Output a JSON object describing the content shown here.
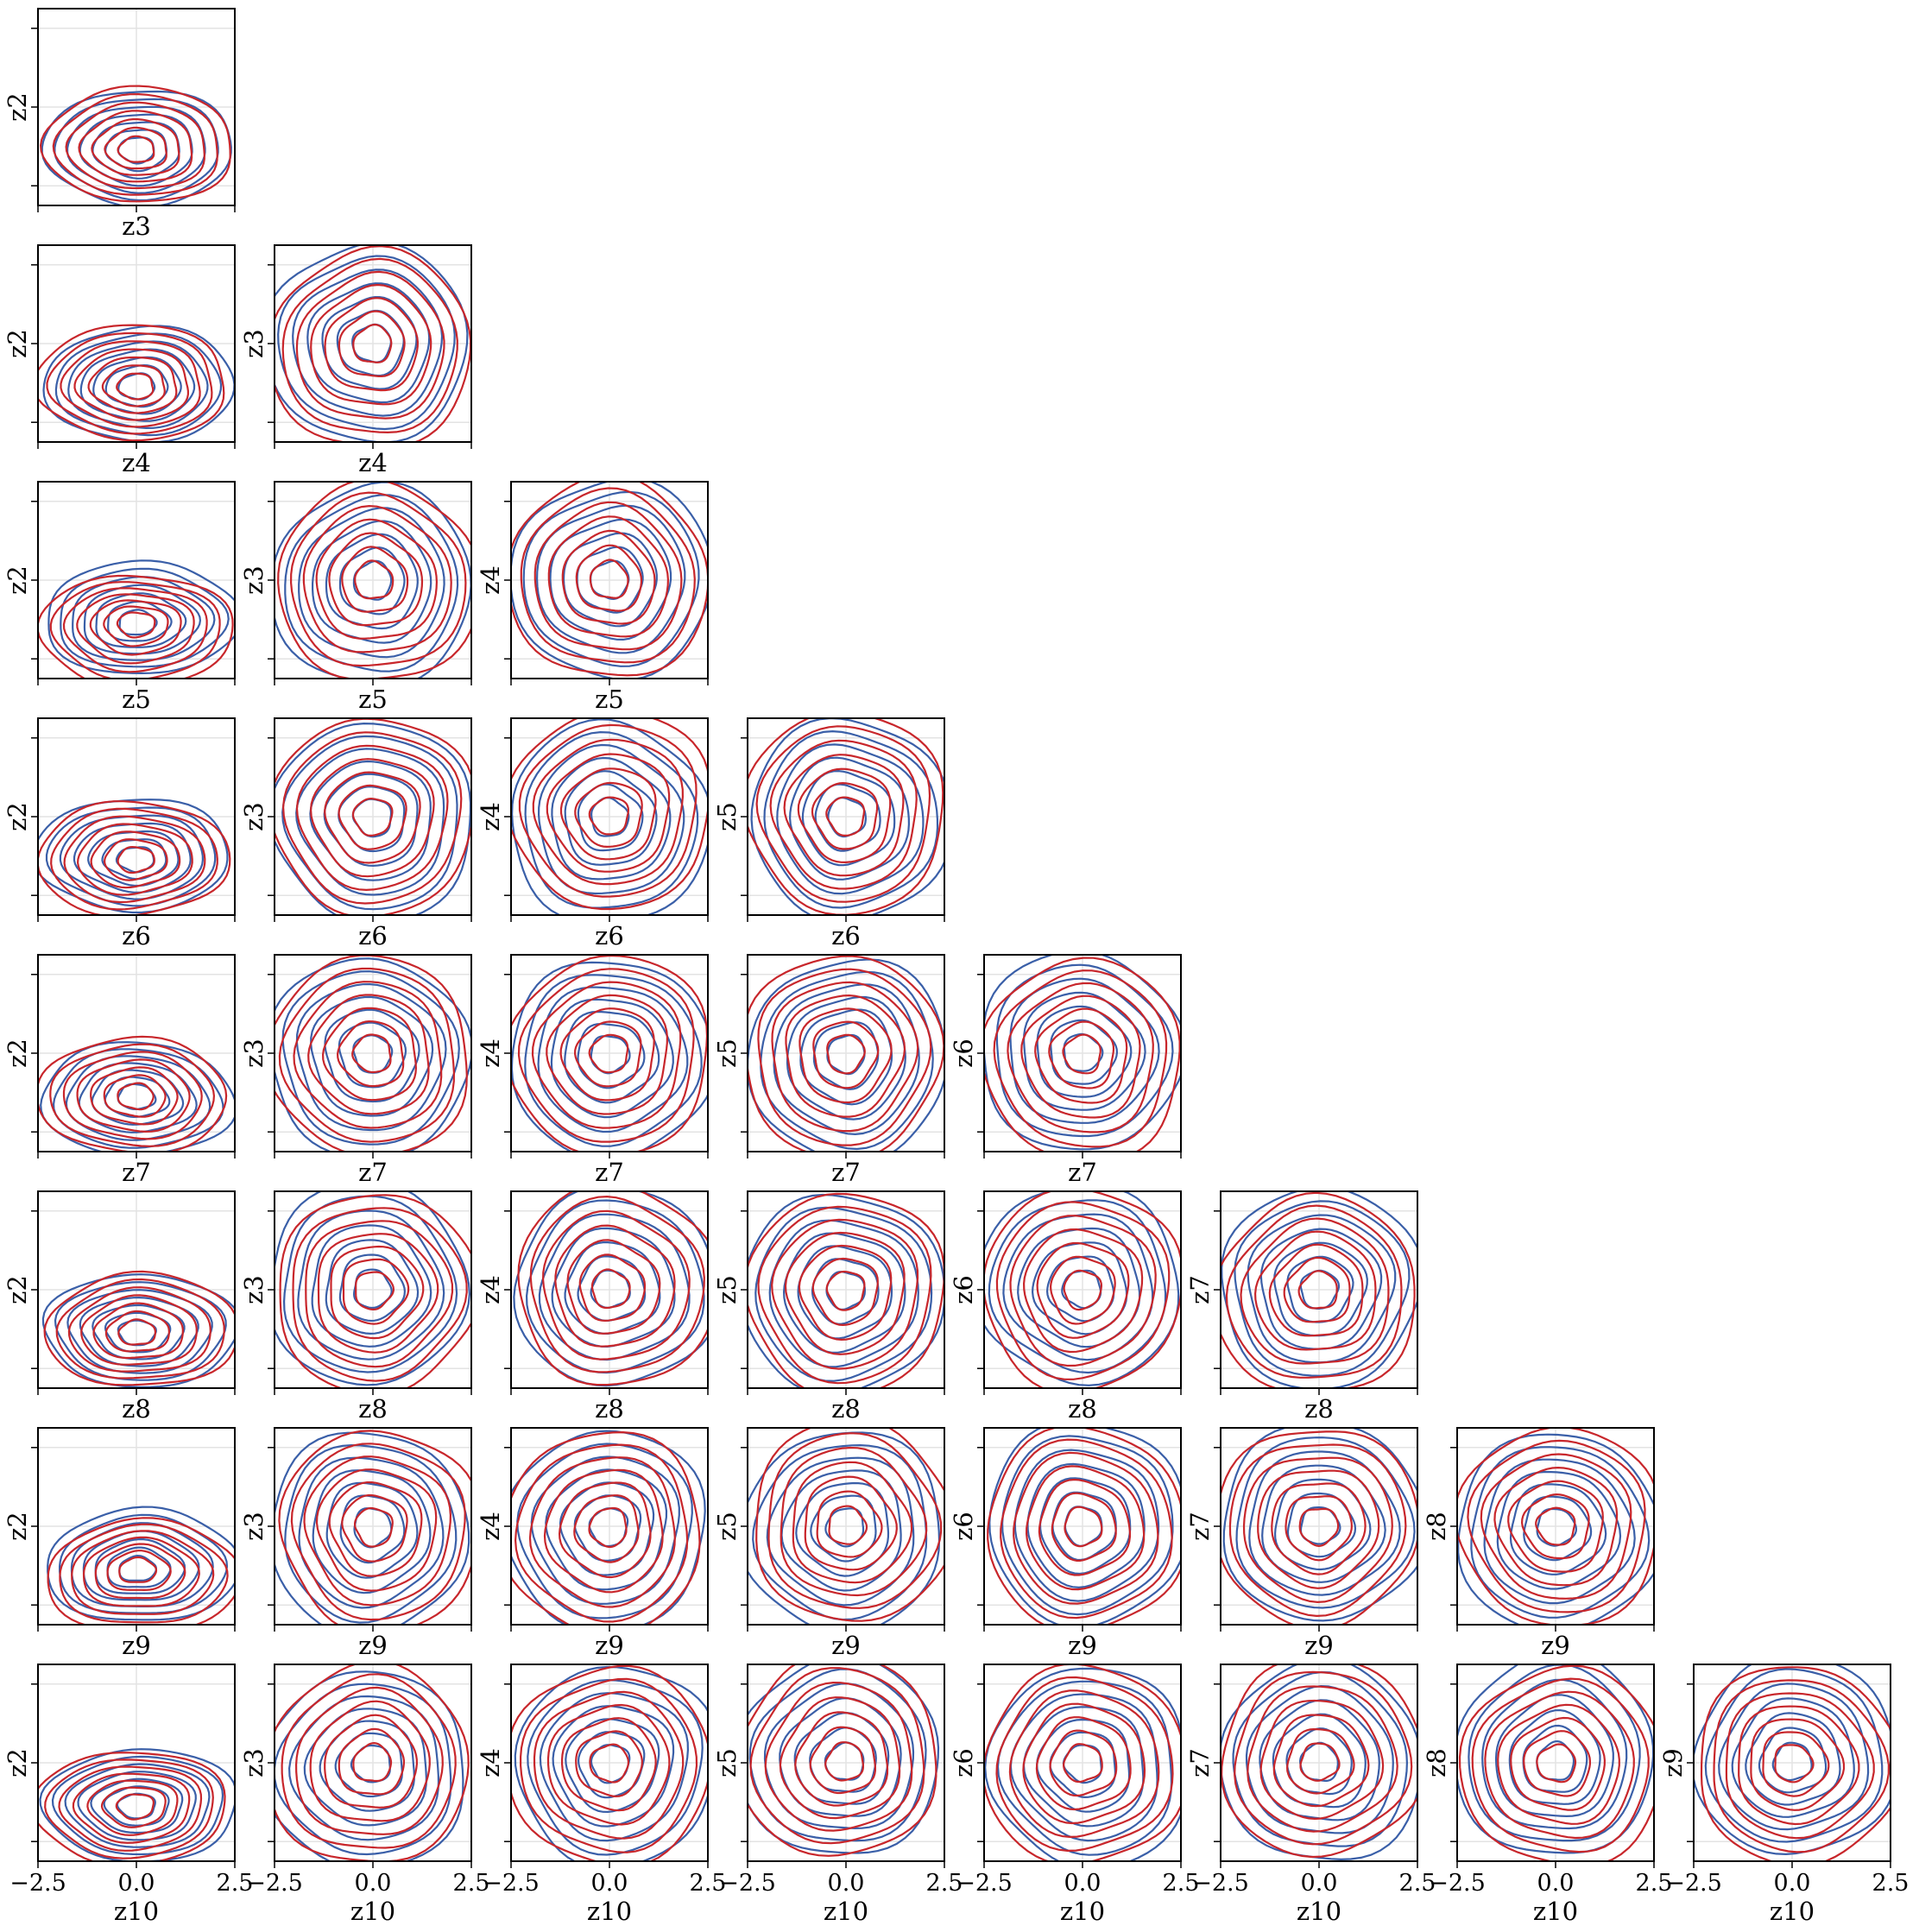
{
  "chart_data": {
    "type": "kde-contour-pair-grid",
    "layout": "lower-triangle",
    "rows": [
      "z3",
      "z4",
      "z5",
      "z6",
      "z7",
      "z8",
      "z9",
      "z10"
    ],
    "columns": [
      "z2",
      "z3",
      "z4",
      "z5",
      "z6",
      "z7",
      "z8",
      "z9"
    ],
    "xlim": [
      -2.5,
      2.5
    ],
    "ylim": [
      -2.5,
      2.5
    ],
    "xticks": [
      -2.5,
      0.0,
      2.5
    ],
    "xtick_labels": [
      "−2.5",
      "0.0",
      "2.5"
    ],
    "yticks": [
      -2.0,
      0.0,
      2.0
    ],
    "grid": true,
    "series_colors": [
      "#3a5fa8",
      "#c8262b"
    ],
    "contour_levels": 7
  }
}
